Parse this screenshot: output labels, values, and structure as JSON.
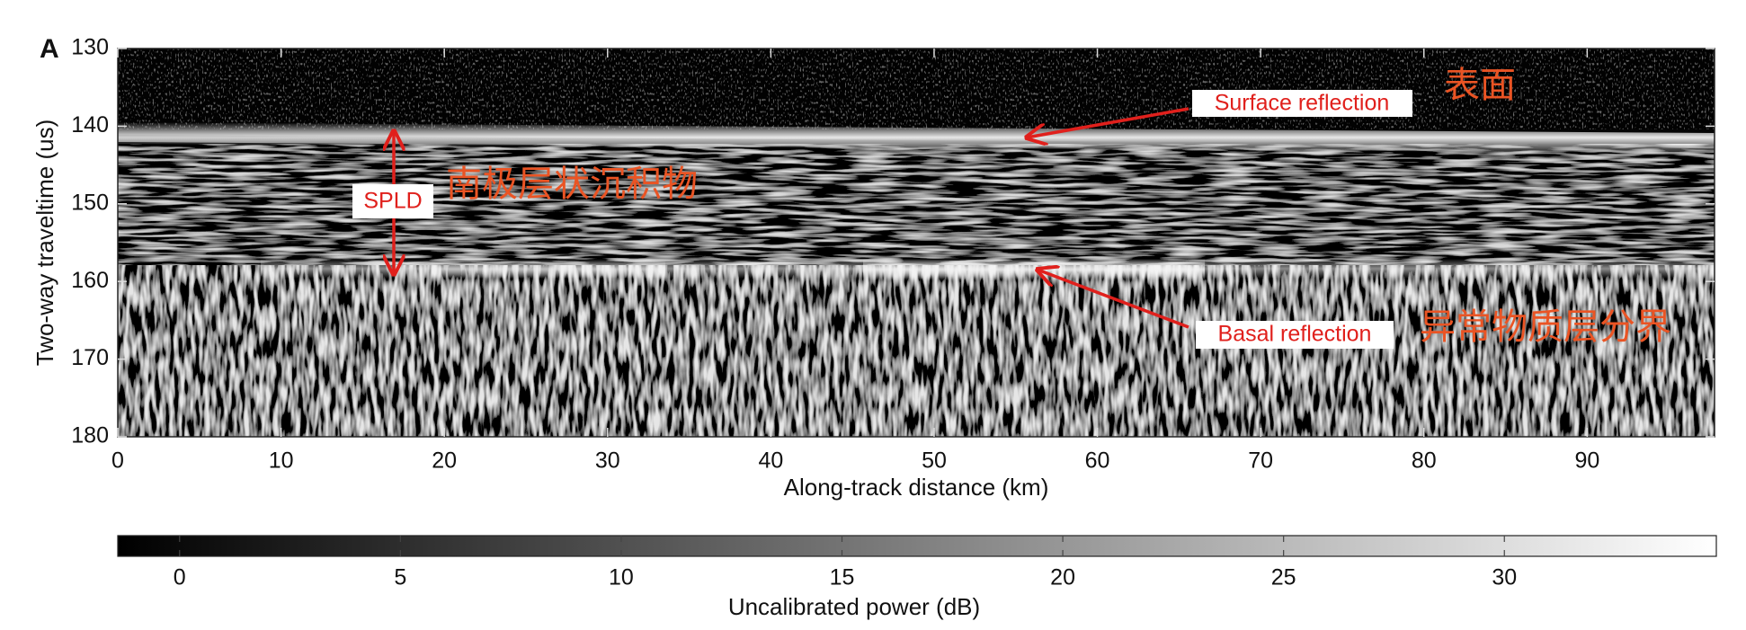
{
  "chart_data": {
    "type": "radargram",
    "panel_label": "A",
    "xlabel": "Along-track distance (km)",
    "ylabel": "Two-way traveltime (us)",
    "xlim": [
      0,
      97.8
    ],
    "xticks": [
      0,
      10,
      20,
      30,
      40,
      50,
      60,
      70,
      80,
      90
    ],
    "ylim": [
      180,
      130
    ],
    "yticks": [
      130,
      140,
      150,
      160,
      170,
      180
    ],
    "colorbar": {
      "label": "Uncalibrated power (dB)",
      "lim": [
        -1.4,
        34.8
      ],
      "ticks": [
        0,
        5,
        10,
        15,
        20,
        25,
        30
      ]
    },
    "annotations": [
      "Surface reflection",
      "Basal reflection",
      "SPLD"
    ],
    "translations": [
      "表面",
      "南极层状沉积物",
      "异常物质层分界"
    ]
  }
}
